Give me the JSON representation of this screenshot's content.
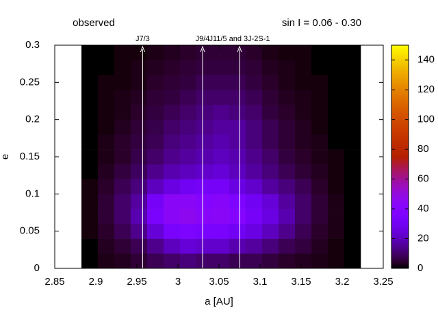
{
  "chart_data": {
    "type": "heatmap",
    "title": "observed",
    "subtitle": "sin I = 0.06 - 0.30",
    "x_label": "a [AU]",
    "y_label": "e",
    "xlim": [
      2.85,
      3.25
    ],
    "xticks": [
      2.85,
      2.9,
      2.95,
      3,
      3.05,
      3.1,
      3.15,
      3.2,
      3.25
    ],
    "ylim": [
      0,
      0.3
    ],
    "yticks": [
      0,
      0.05,
      0.1,
      0.15,
      0.2,
      0.25,
      0.3
    ],
    "cblim": [
      0,
      150
    ],
    "cbticks": [
      0,
      20,
      40,
      60,
      80,
      100,
      120,
      140
    ],
    "x_bins": [
      2.8825,
      2.9025,
      2.9225,
      2.9425,
      2.9625,
      2.9825,
      3.0025,
      3.0225,
      3.0425,
      3.0625,
      3.0825,
      3.1025,
      3.1225,
      3.1425,
      3.1625,
      3.1825,
      3.2025,
      3.2225
    ],
    "y_bins": [
      0,
      0.02,
      0.04,
      0.06,
      0.08,
      0.1,
      0.12,
      0.14,
      0.16,
      0.18,
      0.2,
      0.22,
      0.24,
      0.26,
      0.28,
      0.3
    ],
    "z": [
      [
        0,
        2,
        3,
        5,
        8,
        10,
        12,
        10,
        10,
        8,
        8,
        6,
        4,
        3,
        2,
        1,
        0
      ],
      [
        0,
        3,
        5,
        8,
        14,
        20,
        24,
        22,
        22,
        18,
        16,
        12,
        8,
        6,
        3,
        1,
        0
      ],
      [
        1,
        4,
        8,
        14,
        24,
        34,
        36,
        34,
        34,
        30,
        26,
        20,
        14,
        8,
        4,
        2,
        0
      ],
      [
        1,
        5,
        10,
        18,
        34,
        44,
        46,
        42,
        44,
        40,
        32,
        26,
        18,
        10,
        5,
        2,
        0
      ],
      [
        1,
        5,
        10,
        16,
        32,
        44,
        44,
        40,
        42,
        36,
        30,
        24,
        16,
        10,
        5,
        2,
        0
      ],
      [
        1,
        4,
        8,
        12,
        20,
        26,
        30,
        32,
        32,
        26,
        22,
        16,
        12,
        8,
        4,
        1,
        0
      ],
      [
        0,
        3,
        6,
        9,
        14,
        18,
        20,
        22,
        24,
        20,
        16,
        12,
        8,
        5,
        3,
        1,
        0
      ],
      [
        0,
        2,
        4,
        7,
        10,
        14,
        16,
        18,
        20,
        18,
        14,
        10,
        6,
        4,
        2,
        1,
        0
      ],
      [
        0,
        2,
        4,
        6,
        8,
        12,
        14,
        16,
        18,
        16,
        12,
        8,
        5,
        3,
        2,
        0,
        0
      ],
      [
        0,
        1,
        3,
        5,
        7,
        10,
        12,
        14,
        16,
        16,
        12,
        8,
        5,
        3,
        1,
        0,
        0
      ],
      [
        0,
        1,
        2,
        4,
        6,
        8,
        10,
        12,
        14,
        12,
        10,
        6,
        4,
        2,
        1,
        0,
        0
      ],
      [
        0,
        1,
        2,
        3,
        5,
        6,
        8,
        10,
        10,
        10,
        8,
        5,
        3,
        2,
        1,
        0,
        0
      ],
      [
        0,
        1,
        1,
        2,
        4,
        5,
        6,
        8,
        8,
        8,
        6,
        4,
        2,
        1,
        1,
        0,
        0
      ],
      [
        0,
        0,
        1,
        2,
        3,
        4,
        5,
        6,
        6,
        6,
        5,
        3,
        2,
        1,
        0,
        0,
        0
      ],
      [
        0,
        0,
        1,
        1,
        2,
        3,
        4,
        5,
        5,
        5,
        4,
        2,
        1,
        1,
        0,
        0,
        0
      ]
    ],
    "annotations": [
      {
        "label": "J7/3",
        "x": 2.957
      },
      {
        "label": "J9/4",
        "x": 3.03
      },
      {
        "label": "J11/5 and 3J-2S-1",
        "x": 3.075
      }
    ]
  }
}
